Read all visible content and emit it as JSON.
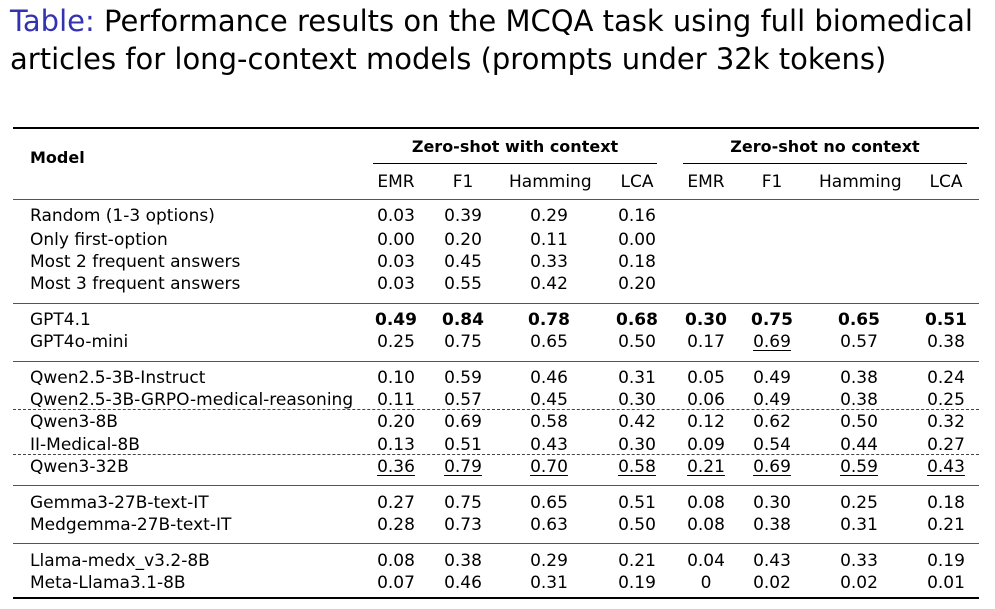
{
  "title": {
    "label": "Table:",
    "text": "Performance results on the MCQA task using full biomedical articles for long-context models (prompts under 32k tokens)"
  },
  "table": {
    "model_header": "Model",
    "group_headers": [
      "Zero-shot with context",
      "Zero-shot no context"
    ],
    "metric_headers": [
      "EMR",
      "F1",
      "Hamming",
      "LCA",
      "EMR",
      "F1",
      "Hamming",
      "LCA"
    ],
    "rows": [
      {
        "model": "Random (1-3 options)",
        "values": [
          "0.03",
          "0.39",
          "0.29",
          "0.16",
          "",
          "",
          "",
          ""
        ]
      },
      {
        "model": "Only first-option",
        "values": [
          "0.00",
          "0.20",
          "0.11",
          "0.00",
          "",
          "",
          "",
          ""
        ]
      },
      {
        "model": "Most 2 frequent answers",
        "values": [
          "0.03",
          "0.45",
          "0.33",
          "0.18",
          "",
          "",
          "",
          ""
        ]
      },
      {
        "model": "Most 3 frequent answers",
        "values": [
          "0.03",
          "0.55",
          "0.42",
          "0.20",
          "",
          "",
          "",
          ""
        ]
      },
      {
        "model": "GPT4.1",
        "values": [
          "0.49",
          "0.84",
          "0.78",
          "0.68",
          "0.30",
          "0.75",
          "0.65",
          "0.51"
        ]
      },
      {
        "model": "GPT4o-mini",
        "values": [
          "0.25",
          "0.75",
          "0.65",
          "0.50",
          "0.17",
          "0.69",
          "0.57",
          "0.38"
        ]
      },
      {
        "model": "Qwen2.5-3B-Instruct",
        "values": [
          "0.10",
          "0.59",
          "0.46",
          "0.31",
          "0.05",
          "0.49",
          "0.38",
          "0.24"
        ]
      },
      {
        "model": "Qwen2.5-3B-GRPO-medical-reasoning",
        "values": [
          "0.11",
          "0.57",
          "0.45",
          "0.30",
          "0.06",
          "0.49",
          "0.38",
          "0.25"
        ]
      },
      {
        "model": "Qwen3-8B",
        "values": [
          "0.20",
          "0.69",
          "0.58",
          "0.42",
          "0.12",
          "0.62",
          "0.50",
          "0.32"
        ]
      },
      {
        "model": "II-Medical-8B",
        "values": [
          "0.13",
          "0.51",
          "0.43",
          "0.30",
          "0.09",
          "0.54",
          "0.44",
          "0.27"
        ]
      },
      {
        "model": "Qwen3-32B",
        "values": [
          "0.36",
          "0.79",
          "0.70",
          "0.58",
          "0.21",
          "0.69",
          "0.59",
          "0.43"
        ]
      },
      {
        "model": "Gemma3-27B-text-IT",
        "values": [
          "0.27",
          "0.75",
          "0.65",
          "0.51",
          "0.08",
          "0.30",
          "0.25",
          "0.18"
        ]
      },
      {
        "model": "Medgemma-27B-text-IT",
        "values": [
          "0.28",
          "0.73",
          "0.63",
          "0.50",
          "0.08",
          "0.38",
          "0.31",
          "0.21"
        ]
      },
      {
        "model": "Llama-medx_v3.2-8B",
        "values": [
          "0.08",
          "0.38",
          "0.29",
          "0.21",
          "0.04",
          "0.43",
          "0.33",
          "0.19"
        ]
      },
      {
        "model": "Meta-Llama3.1-8B",
        "values": [
          "0.07",
          "0.46",
          "0.31",
          "0.19",
          "0",
          "0.02",
          "0.02",
          "0.01"
        ]
      }
    ],
    "bold_rows": [
      4
    ],
    "underlined_cells": [
      [
        5,
        5
      ],
      [
        10,
        0
      ],
      [
        10,
        1
      ],
      [
        10,
        2
      ],
      [
        10,
        3
      ],
      [
        10,
        4
      ],
      [
        10,
        5
      ],
      [
        10,
        6
      ],
      [
        10,
        7
      ]
    ]
  }
}
